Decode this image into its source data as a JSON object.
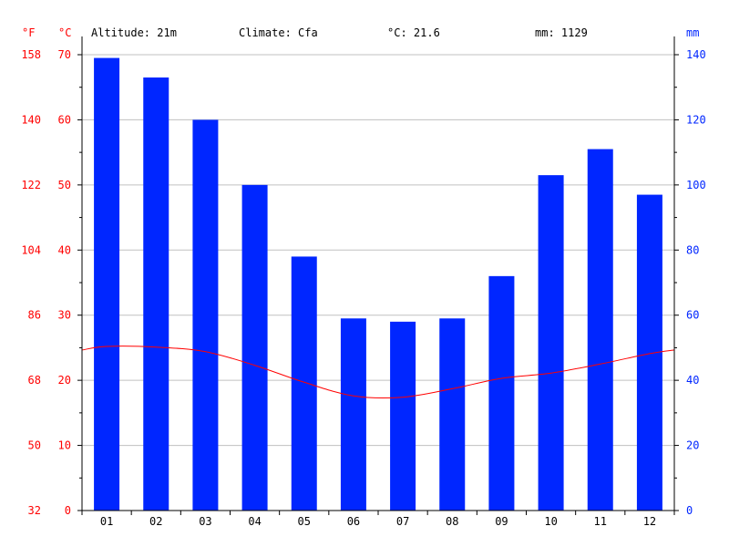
{
  "header": {
    "altitude": "Altitude: 21m",
    "climate": "Climate: Cfa",
    "avg_temp": "°C: 21.6",
    "precip": "mm: 1129"
  },
  "units": {
    "fahrenheit": "°F",
    "celsius": "°C",
    "mm": "mm"
  },
  "colors": {
    "precip_bar": "#0026ff",
    "temp_line": "#ff0000",
    "temp_axis": "#ff0000",
    "precip_axis": "#0026ff",
    "grid": "#c0c0c0"
  },
  "chart_data": {
    "type": "bar",
    "categories": [
      "01",
      "02",
      "03",
      "04",
      "05",
      "06",
      "07",
      "08",
      "09",
      "10",
      "11",
      "12"
    ],
    "series": [
      {
        "type": "bar",
        "axis": "right",
        "values": [
          139,
          133,
          120,
          100,
          78,
          59,
          58,
          59,
          72,
          103,
          111,
          97
        ]
      },
      {
        "type": "line",
        "axis": "left",
        "values": [
          25.2,
          25.1,
          24.4,
          22.3,
          19.7,
          17.6,
          17.4,
          18.7,
          20.3,
          21.1,
          22.5,
          24.1
        ]
      }
    ],
    "ylim_celsius": [
      0,
      70
    ],
    "ylim_mm": [
      0,
      140
    ],
    "celsius_ticks": [
      "0",
      "10",
      "20",
      "30",
      "40",
      "50",
      "60",
      "70"
    ],
    "fahrenheit_ticks": [
      "32",
      "50",
      "68",
      "86",
      "104",
      "122",
      "140",
      "158"
    ],
    "mm_ticks": [
      "0",
      "20",
      "40",
      "60",
      "80",
      "100",
      "120",
      "140"
    ],
    "grid": true
  }
}
